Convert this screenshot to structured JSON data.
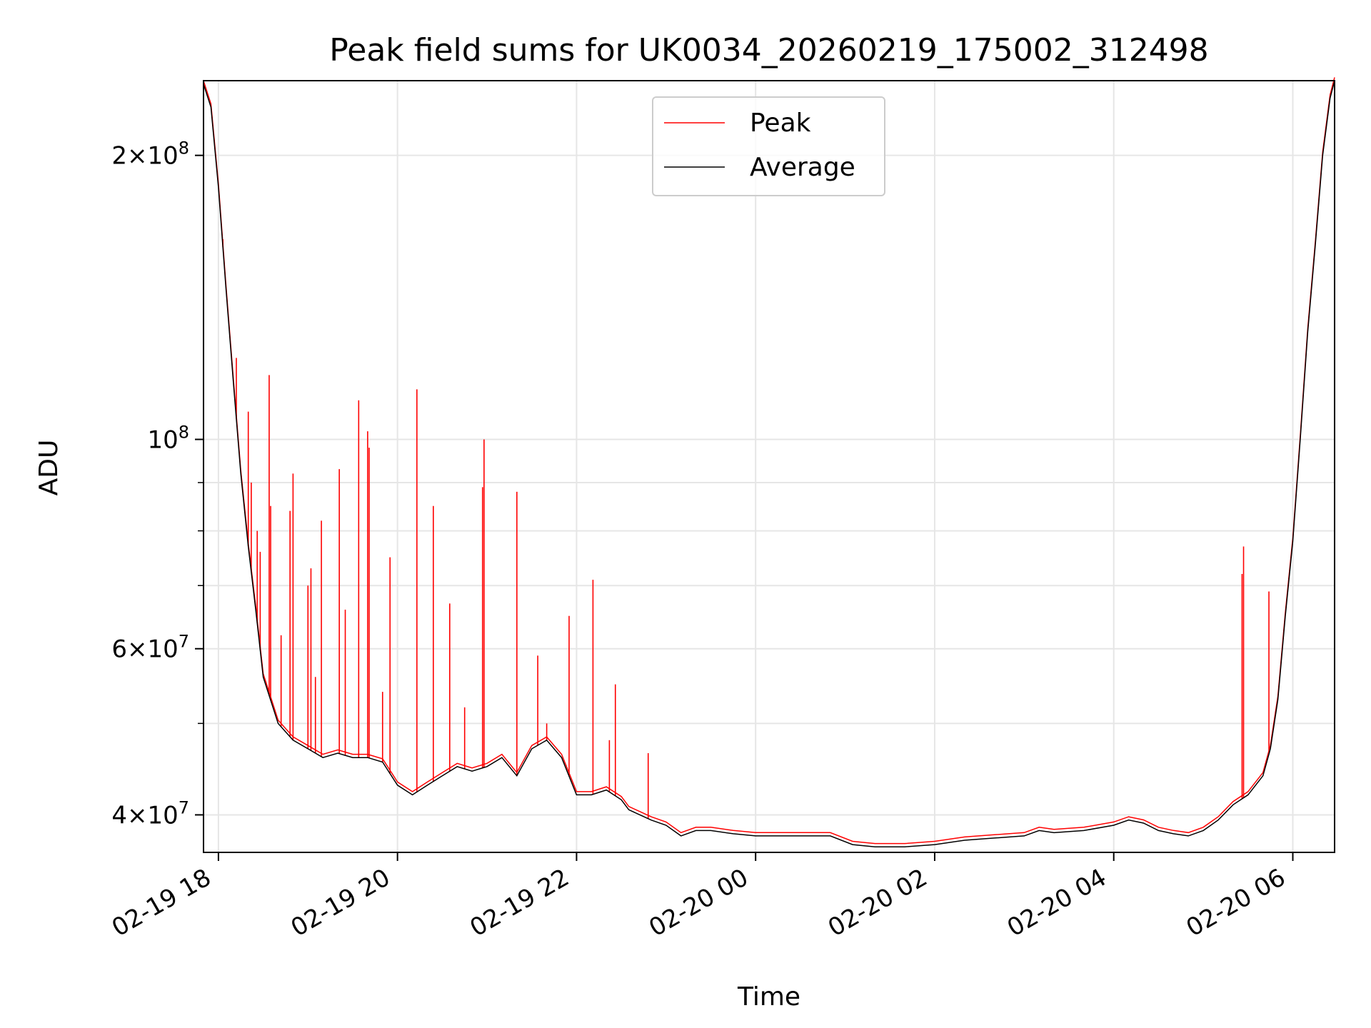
{
  "chart_data": {
    "type": "line",
    "title": "Peak field sums for UK0034_20260219_175002_312498",
    "xlabel": "Time",
    "ylabel": "ADU",
    "yscale": "log",
    "ylim": [
      36500000,
      240000000
    ],
    "xlim": [
      "2026-02-19 17:50",
      "2026-02-20 06:28"
    ],
    "grid": true,
    "legend_placement": "upper center",
    "x_ticks": [
      {
        "t": "2026-02-19 18:00",
        "label": "02-19 18"
      },
      {
        "t": "2026-02-19 20:00",
        "label": "02-19 20"
      },
      {
        "t": "2026-02-19 22:00",
        "label": "02-19 22"
      },
      {
        "t": "2026-02-20 00:00",
        "label": "02-20 00"
      },
      {
        "t": "2026-02-20 02:00",
        "label": "02-20 02"
      },
      {
        "t": "2026-02-20 04:00",
        "label": "02-20 04"
      },
      {
        "t": "2026-02-20 06:00",
        "label": "02-20 06"
      }
    ],
    "y_ticks": [
      {
        "value": 40000000,
        "mant": "4",
        "exp": "7"
      },
      {
        "value": 60000000,
        "mant": "6",
        "exp": "7"
      },
      {
        "value": 100000000,
        "mant": "",
        "exp": "8"
      },
      {
        "value": 200000000,
        "mant": "2",
        "exp": "8"
      }
    ],
    "series": [
      {
        "name": "Average",
        "color": "#000000",
        "x": [
          "2026-02-19 17:50",
          "2026-02-19 17:55",
          "2026-02-19 18:00",
          "2026-02-19 18:05",
          "2026-02-19 18:10",
          "2026-02-19 18:15",
          "2026-02-19 18:20",
          "2026-02-19 18:25",
          "2026-02-19 18:30",
          "2026-02-19 18:40",
          "2026-02-19 18:50",
          "2026-02-19 19:00",
          "2026-02-19 19:10",
          "2026-02-19 19:20",
          "2026-02-19 19:30",
          "2026-02-19 19:40",
          "2026-02-19 19:50",
          "2026-02-19 20:00",
          "2026-02-19 20:10",
          "2026-02-19 20:20",
          "2026-02-19 20:30",
          "2026-02-19 20:40",
          "2026-02-19 20:50",
          "2026-02-19 21:00",
          "2026-02-19 21:10",
          "2026-02-19 21:20",
          "2026-02-19 21:30",
          "2026-02-19 21:40",
          "2026-02-19 21:50",
          "2026-02-19 22:00",
          "2026-02-19 22:10",
          "2026-02-19 22:20",
          "2026-02-19 22:30",
          "2026-02-19 22:35",
          "2026-02-19 22:50",
          "2026-02-19 23:00",
          "2026-02-19 23:10",
          "2026-02-19 23:20",
          "2026-02-19 23:30",
          "2026-02-19 23:45",
          "2026-02-20 00:00",
          "2026-02-20 00:30",
          "2026-02-20 00:50",
          "2026-02-20 01:05",
          "2026-02-20 01:20",
          "2026-02-20 01:40",
          "2026-02-20 02:00",
          "2026-02-20 02:20",
          "2026-02-20 02:40",
          "2026-02-20 03:00",
          "2026-02-20 03:10",
          "2026-02-20 03:20",
          "2026-02-20 03:40",
          "2026-02-20 04:00",
          "2026-02-20 04:10",
          "2026-02-20 04:20",
          "2026-02-20 04:30",
          "2026-02-20 04:40",
          "2026-02-20 04:50",
          "2026-02-20 05:00",
          "2026-02-20 05:10",
          "2026-02-20 05:20",
          "2026-02-20 05:30",
          "2026-02-20 05:40",
          "2026-02-20 05:45",
          "2026-02-20 05:50",
          "2026-02-20 05:55",
          "2026-02-20 06:00",
          "2026-02-20 06:05",
          "2026-02-20 06:10",
          "2026-02-20 06:15",
          "2026-02-20 06:20",
          "2026-02-20 06:25",
          "2026-02-20 06:28"
        ],
        "y": [
          238000000,
          225000000,
          185000000,
          145000000,
          115000000,
          92000000,
          77000000,
          66000000,
          56000000,
          50000000,
          48000000,
          47000000,
          46000000,
          46500000,
          46000000,
          46000000,
          45500000,
          43000000,
          42000000,
          43000000,
          44000000,
          45000000,
          44500000,
          45000000,
          46000000,
          44000000,
          47000000,
          48000000,
          46000000,
          42000000,
          42000000,
          42500000,
          41500000,
          40500000,
          39500000,
          39000000,
          38000000,
          38500000,
          38500000,
          38200000,
          38000000,
          38000000,
          38000000,
          37200000,
          37000000,
          37000000,
          37200000,
          37600000,
          37800000,
          38000000,
          38500000,
          38300000,
          38500000,
          39000000,
          39500000,
          39200000,
          38500000,
          38200000,
          38000000,
          38500000,
          39500000,
          41000000,
          42000000,
          44000000,
          47000000,
          53000000,
          65000000,
          78000000,
          100000000,
          130000000,
          160000000,
          200000000,
          230000000,
          240000000
        ]
      },
      {
        "name": "Peak",
        "color": "#ff0000",
        "spikes": [
          {
            "t": "2026-02-19 18:03",
            "y": 163000000
          },
          {
            "t": "2026-02-19 18:12",
            "y": 122000000
          },
          {
            "t": "2026-02-19 18:20",
            "y": 107000000
          },
          {
            "t": "2026-02-19 18:22",
            "y": 90000000
          },
          {
            "t": "2026-02-19 18:26",
            "y": 80000000
          },
          {
            "t": "2026-02-19 18:28",
            "y": 76000000
          },
          {
            "t": "2026-02-19 18:34",
            "y": 117000000
          },
          {
            "t": "2026-02-19 18:35",
            "y": 85000000
          },
          {
            "t": "2026-02-19 18:42",
            "y": 62000000
          },
          {
            "t": "2026-02-19 18:48",
            "y": 84000000
          },
          {
            "t": "2026-02-19 18:50",
            "y": 92000000
          },
          {
            "t": "2026-02-19 19:00",
            "y": 70000000
          },
          {
            "t": "2026-02-19 19:02",
            "y": 73000000
          },
          {
            "t": "2026-02-19 19:05",
            "y": 56000000
          },
          {
            "t": "2026-02-19 19:09",
            "y": 82000000
          },
          {
            "t": "2026-02-19 19:21",
            "y": 93000000
          },
          {
            "t": "2026-02-19 19:25",
            "y": 66000000
          },
          {
            "t": "2026-02-19 19:34",
            "y": 110000000
          },
          {
            "t": "2026-02-19 19:40",
            "y": 102000000
          },
          {
            "t": "2026-02-19 19:41",
            "y": 98000000
          },
          {
            "t": "2026-02-19 19:50",
            "y": 54000000
          },
          {
            "t": "2026-02-19 19:55",
            "y": 75000000
          },
          {
            "t": "2026-02-19 20:13",
            "y": 113000000
          },
          {
            "t": "2026-02-19 20:24",
            "y": 85000000
          },
          {
            "t": "2026-02-19 20:35",
            "y": 67000000
          },
          {
            "t": "2026-02-19 20:45",
            "y": 52000000
          },
          {
            "t": "2026-02-19 20:57",
            "y": 89000000
          },
          {
            "t": "2026-02-19 20:58",
            "y": 100000000
          },
          {
            "t": "2026-02-19 21:20",
            "y": 88000000
          },
          {
            "t": "2026-02-19 21:34",
            "y": 59000000
          },
          {
            "t": "2026-02-19 21:40",
            "y": 50000000
          },
          {
            "t": "2026-02-19 21:55",
            "y": 65000000
          },
          {
            "t": "2026-02-19 22:11",
            "y": 71000000
          },
          {
            "t": "2026-02-19 22:22",
            "y": 48000000
          },
          {
            "t": "2026-02-19 22:26",
            "y": 55000000
          },
          {
            "t": "2026-02-19 22:48",
            "y": 46500000
          },
          {
            "t": "2026-02-20 05:26",
            "y": 72000000
          },
          {
            "t": "2026-02-20 05:27",
            "y": 77000000
          },
          {
            "t": "2026-02-20 05:44",
            "y": 69000000
          }
        ]
      }
    ]
  }
}
